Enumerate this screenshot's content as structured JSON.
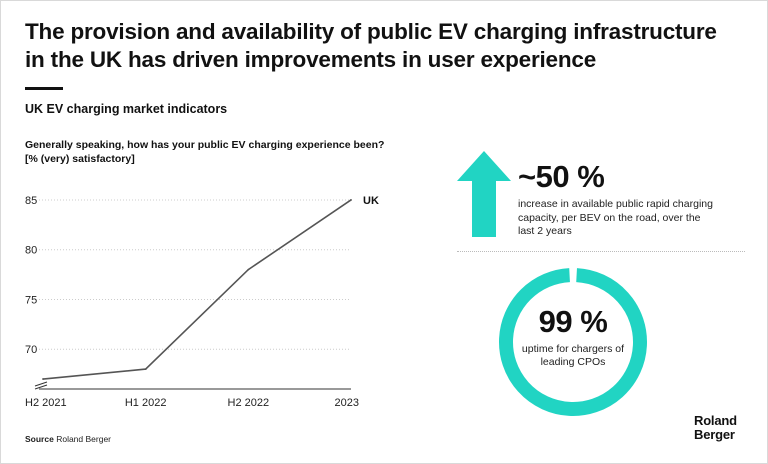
{
  "title_line1": "The provision and availability of public EV charging infrastructure",
  "title_line2": "in the UK has driven improvements in user experience",
  "subtitle": "UK EV charging market indicators",
  "question_line1": "Generally speaking, how has your public EV charging experience been?",
  "question_line2": "[% (very) satisfactory]",
  "chart_data": {
    "type": "line",
    "categories": [
      "H2 2021",
      "H1 2022",
      "H2 2022",
      "2023"
    ],
    "series": [
      {
        "name": "UK",
        "values": [
          67,
          68,
          78,
          85
        ]
      }
    ],
    "ylim": [
      66,
      86
    ],
    "yticks": [
      70,
      75,
      80,
      85
    ],
    "title": "Generally speaking, how has your public EV charging experience been?",
    "ylabel": "[% (very) satisfactory]",
    "xlabel": "",
    "grid": true,
    "axis_break": true
  },
  "stats": {
    "charging_capacity": {
      "value": "~50 %",
      "description": "increase in available public rapid charging capacity, per BEV on the road, over the last 2 years",
      "icon": "up-arrow-icon"
    },
    "uptime": {
      "value": "99 %",
      "description": "uptime for chargers of leading CPOs",
      "ring_fraction": 0.99
    }
  },
  "source_label": "Source",
  "source_text": "Roland Berger",
  "logo_line1": "Roland",
  "logo_line2": "Berger",
  "colors": {
    "accent": "#21d4c3",
    "line": "#555555",
    "grid": "#cccccc",
    "text": "#111111"
  }
}
